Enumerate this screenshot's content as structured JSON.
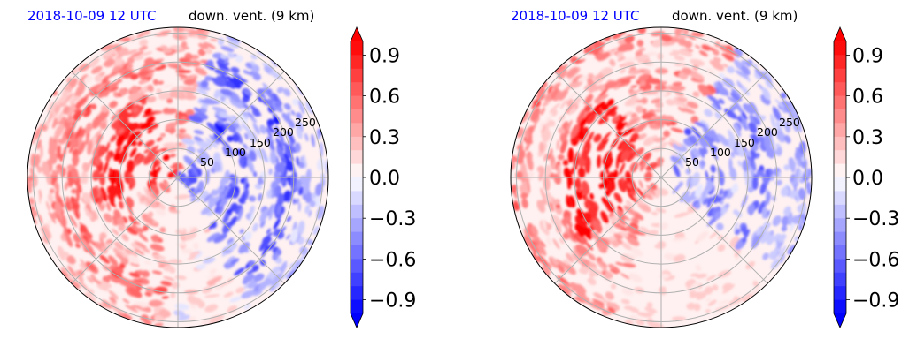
{
  "chart_data": [
    {
      "type": "heatmap",
      "title_left": "2018-10-09 12 UTC",
      "title_right": "down. vent. (9 km)",
      "title_left_color": "#0000ff",
      "projection": "polar",
      "radial_ticks": [
        "50",
        "100",
        "150",
        "200",
        "250"
      ],
      "radial_values": [
        50,
        100,
        150,
        200,
        250
      ],
      "colorbar": {
        "ticks": [
          "0.9",
          "0.6",
          "0.3",
          "0.0",
          "−0.3",
          "−0.6",
          "−0.9"
        ],
        "tick_values": [
          0.9,
          0.6,
          0.3,
          0.0,
          -0.3,
          -0.6,
          -0.9
        ],
        "vmin": -1.0,
        "vmax": 1.0,
        "levels": 20,
        "extend": "both",
        "cmap": "bwr"
      },
      "pattern": "positive values concentrated west and south-west, negative values north-east and east"
    },
    {
      "type": "heatmap",
      "title_left": "2018-10-09 12 UTC",
      "title_right": "down. vent. (9 km)",
      "title_left_color": "#0000ff",
      "projection": "polar",
      "radial_ticks": [
        "50",
        "100",
        "150",
        "200",
        "250"
      ],
      "radial_values": [
        50,
        100,
        150,
        200,
        250
      ],
      "colorbar": {
        "ticks": [
          "0.9",
          "0.6",
          "0.3",
          "0.0",
          "−0.3",
          "−0.6",
          "−0.9"
        ],
        "tick_values": [
          0.9,
          0.6,
          0.3,
          0.0,
          -0.3,
          -0.6,
          -0.9
        ],
        "vmin": -1.0,
        "vmax": 1.0,
        "levels": 20,
        "extend": "both",
        "cmap": "bwr"
      },
      "pattern": "strong positive band south-west of centre, weaker negative values east"
    }
  ]
}
